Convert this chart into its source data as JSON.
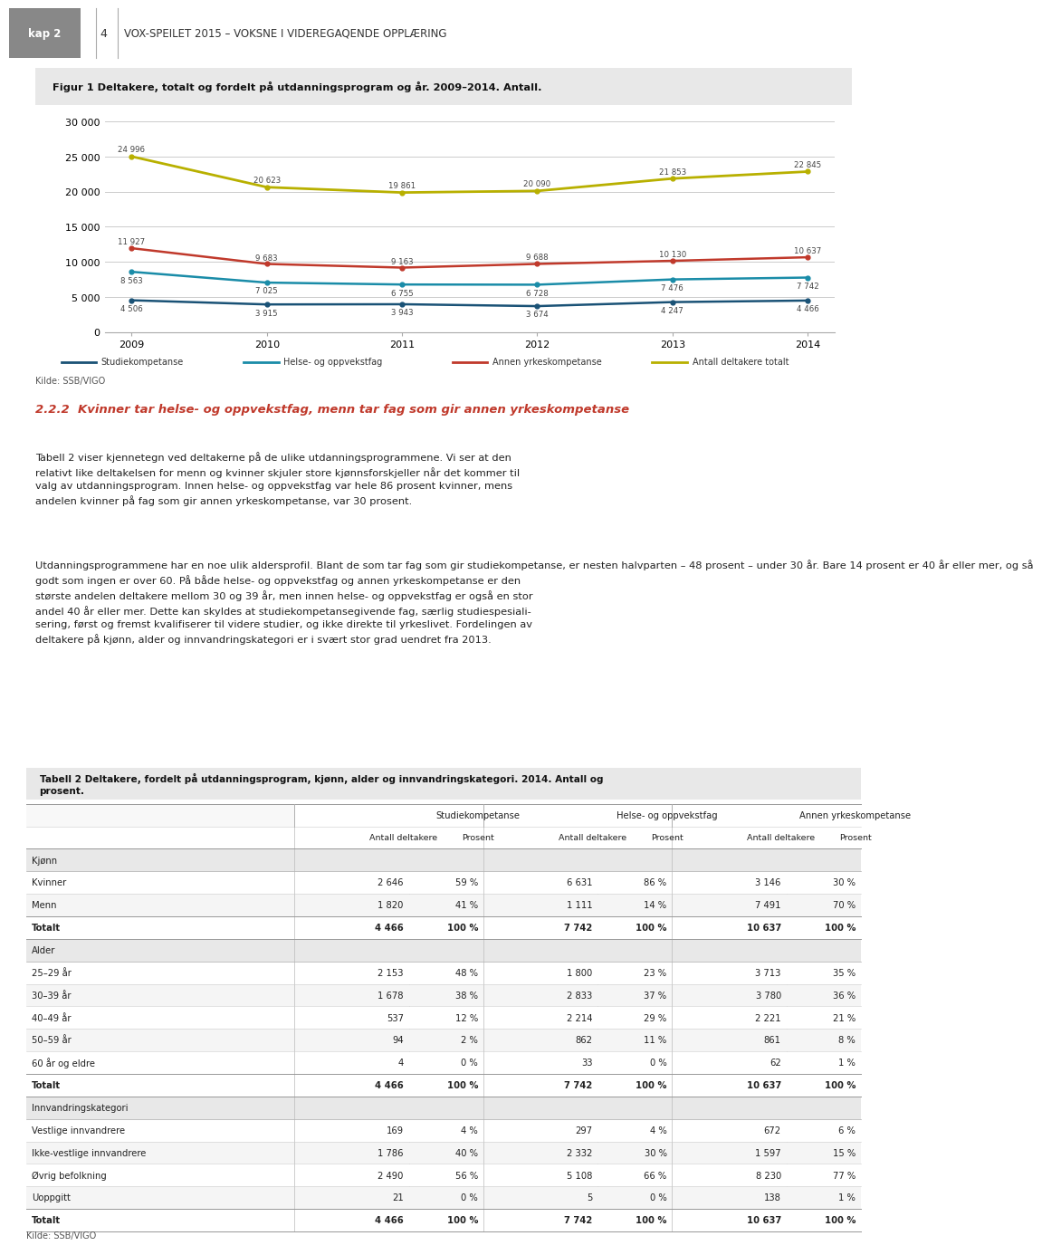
{
  "page_header": "VOX-SPEILET 2015 – VOKSNE I VIDEREGAQENDE OPPLÆRING",
  "kap": "kap 2",
  "page_num": "4",
  "fig_title": "Figur 1 Deltakere, totalt og fordelt på utdanningsprogram og år. 2009–2014. Antall.",
  "years": [
    2009,
    2010,
    2011,
    2012,
    2013,
    2014
  ],
  "studiekompetanse": [
    4506,
    3915,
    3943,
    3674,
    4247,
    4466
  ],
  "helse_oppvekstfag": [
    8563,
    7025,
    6755,
    6728,
    7476,
    7742
  ],
  "annen_yrkeskompetanse": [
    11927,
    9683,
    9163,
    9688,
    10130,
    10637
  ],
  "antall_totalt": [
    24996,
    20623,
    19861,
    20090,
    21853,
    22845
  ],
  "line_colors": {
    "studiekompetanse": "#1a5276",
    "helse_oppvekstfag": "#1a8ca8",
    "annen_yrkeskompetanse": "#c0392b",
    "antall_totalt": "#b8b000"
  },
  "legend_labels": [
    "Studiekompetanse",
    "Helse- og oppvekstfag",
    "Annen yrkeskompetanse",
    "Antall deltakere totalt"
  ],
  "source_fig": "Kilde: SSB/VIGO",
  "section_title_num": "2.2.2",
  "section_title_text": "  Kvinner tar helse- og oppvekstfag, menn tar fag som gir annen yrkeskompetanse",
  "section_title_color": "#c0392b",
  "body_text_1": "Tabell 2 viser kjennetegn ved deltakerne på de ulike utdanningsprogrammene. Vi ser at den\nrelativt like deltakelsen for menn og kvinner skjuler store kjønnsforskjeller når det kommer til\nvalg av utdanningsprogram. Innen helse- og oppvekstfag var hele 86 prosent kvinner, mens\nandelen kvinner på fag som gir annen yrkeskompetanse, var 30 prosent.",
  "body_text_2": "Utdanningsprogrammene har en noe ulik aldersprofil. Blant de som tar fag som gir studiekompetanse, er nesten halvparten – 48 prosent – under 30 år. Bare 14 prosent er 40 år eller mer, og så\ngodt som ingen er over 60. På både helse- og oppvekstfag og annen yrkeskompetanse er den\nstørste andelen deltakere mellom 30 og 39 år, men innen helse- og oppvekstfag er også en stor\nandel 40 år eller mer. Dette kan skyldes at studiekompetansegivende fag, særlig studiespesiali-\nsering, først og fremst kvalifiserer til videre studier, og ikke direkte til yrkeslivet. Fordelingen av\ndeltakere på kjønn, alder og innvandringskategori er i svært stor grad uendret fra 2013.",
  "table_title": "Tabell 2 Deltakere, fordelt på utdanningsprogram, kjønn, alder og innvandringskategori. 2014. Antall og\nprosent.",
  "table_headers_top": [
    "Studiekompetanse",
    "Helse- og oppvekstfag",
    "Annen yrkeskompetanse"
  ],
  "table_headers_sub": [
    "Antall deltakere",
    "Prosent",
    "Antall deltakere",
    "Prosent",
    "Antall deltakere",
    "Prosent"
  ],
  "table_section_kjonn": {
    "label": "Kjønn",
    "rows": [
      [
        "Kvinner",
        "2 646",
        "59 %",
        "6 631",
        "86 %",
        "3 146",
        "30 %"
      ],
      [
        "Menn",
        "1 820",
        "41 %",
        "1 111",
        "14 %",
        "7 491",
        "70 %"
      ]
    ],
    "total": [
      "Totalt",
      "4 466",
      "100 %",
      "7 742",
      "100 %",
      "10 637",
      "100 %"
    ]
  },
  "table_section_alder": {
    "label": "Alder",
    "rows": [
      [
        "25–29 år",
        "2 153",
        "48 %",
        "1 800",
        "23 %",
        "3 713",
        "35 %"
      ],
      [
        "30–39 år",
        "1 678",
        "38 %",
        "2 833",
        "37 %",
        "3 780",
        "36 %"
      ],
      [
        "40–49 år",
        "537",
        "12 %",
        "2 214",
        "29 %",
        "2 221",
        "21 %"
      ],
      [
        "50–59 år",
        "94",
        "2 %",
        "862",
        "11 %",
        "861",
        "8 %"
      ],
      [
        "60 år og eldre",
        "4",
        "0 %",
        "33",
        "0 %",
        "62",
        "1 %"
      ]
    ],
    "total": [
      "Totalt",
      "4 466",
      "100 %",
      "7 742",
      "100 %",
      "10 637",
      "100 %"
    ]
  },
  "table_section_innvandring": {
    "label": "Innvandringskategori",
    "rows": [
      [
        "Vestlige innvandrere",
        "169",
        "4 %",
        "297",
        "4 %",
        "672",
        "6 %"
      ],
      [
        "Ikke-vestlige innvandrere",
        "1 786",
        "40 %",
        "2 332",
        "30 %",
        "1 597",
        "15 %"
      ],
      [
        "Øvrig befolkning",
        "2 490",
        "56 %",
        "5 108",
        "66 %",
        "8 230",
        "77 %"
      ],
      [
        "Uoppgitt",
        "21",
        "0 %",
        "5",
        "0 %",
        "138",
        "1 %"
      ]
    ],
    "total": [
      "Totalt",
      "4 466",
      "100 %",
      "7 742",
      "100 %",
      "10 637",
      "100 %"
    ]
  },
  "source_table": "Kilde: SSB/VIGO",
  "bg_color": "#ffffff",
  "fig_title_bg": "#e8e8e8",
  "table_title_bg": "#e8e8e8",
  "section_row_bg": "#e8e8e8",
  "alt_row_bg": "#f5f5f5",
  "normal_row_bg": "#ffffff"
}
